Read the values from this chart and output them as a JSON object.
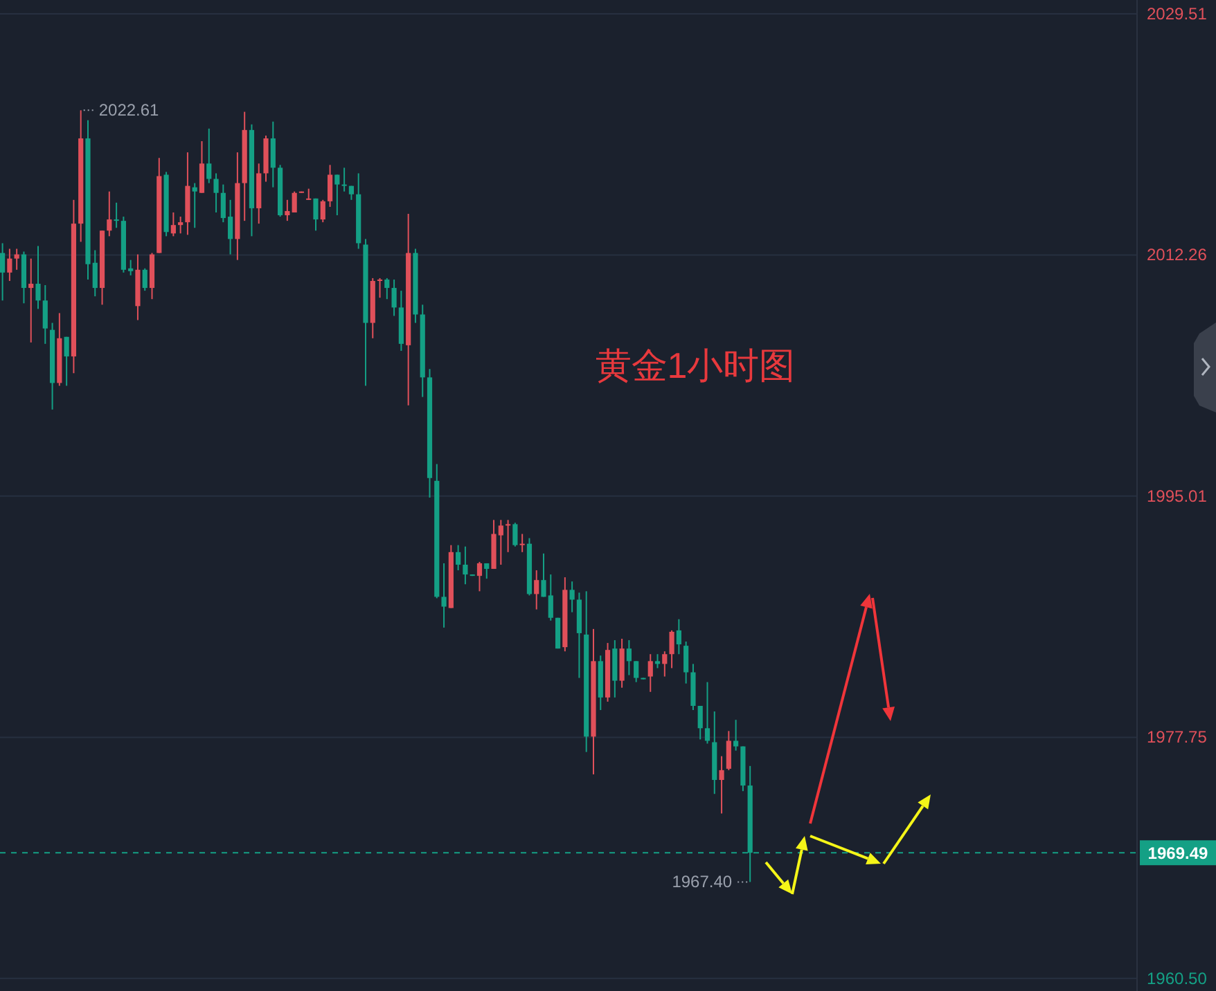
{
  "chart_data": {
    "type": "candlestick",
    "title": "黄金1小时图",
    "categories": [
      null,
      null,
      null,
      null,
      null,
      null,
      null,
      null,
      null,
      null,
      null,
      null,
      null,
      null,
      null,
      null,
      null,
      null,
      null,
      null,
      null,
      null,
      null,
      null,
      null,
      null,
      null,
      null,
      null,
      null,
      null,
      null,
      null,
      null,
      null,
      null,
      null,
      null,
      null,
      null,
      null,
      null,
      null,
      null,
      null,
      null,
      null,
      null,
      null,
      null,
      null,
      null,
      null,
      null,
      null,
      null,
      null,
      null,
      null,
      null,
      null,
      null,
      null,
      null,
      null,
      null,
      null,
      null,
      null,
      null,
      null,
      null,
      null,
      null,
      null,
      null,
      null,
      null,
      null,
      null,
      null,
      null,
      null,
      null,
      null,
      null,
      null,
      null,
      null,
      null,
      null,
      null,
      null,
      null,
      null,
      null,
      null,
      null,
      null,
      null,
      null,
      null,
      null,
      null,
      null,
      null,
      null,
      null,
      null,
      null,
      null,
      null,
      null,
      null,
      null,
      null,
      null,
      null,
      null,
      null,
      null,
      null,
      null,
      null,
      null,
      null,
      null,
      null,
      null,
      null,
      null,
      null,
      null,
      null,
      null,
      null,
      null,
      null,
      null,
      null,
      null,
      null,
      null,
      null,
      null,
      null,
      null,
      null,
      null,
      null,
      null,
      null,
      null,
      null,
      null,
      null,
      null,
      null,
      null,
      null
    ],
    "ohlc": [
      [
        2012.4,
        2013.1,
        2009.0,
        2011.0
      ],
      [
        2011.0,
        2012.7,
        2010.4,
        2012.0
      ],
      [
        2012.0,
        2012.7,
        2011.2,
        2012.3
      ],
      [
        2012.3,
        2012.5,
        2008.8,
        2009.9
      ],
      [
        2009.9,
        2012.0,
        2006.0,
        2010.2
      ],
      [
        2010.2,
        2012.9,
        2008.4,
        2009.0
      ],
      [
        2009.0,
        2010.1,
        2005.9,
        2007.0
      ],
      [
        2006.9,
        2007.4,
        2001.2,
        2003.1
      ],
      [
        2003.1,
        2008.1,
        2002.9,
        2006.3
      ],
      [
        2006.4,
        2006.4,
        2002.9,
        2005.0
      ],
      [
        2005.0,
        2016.2,
        2003.8,
        2014.5
      ],
      [
        2014.5,
        2022.61,
        2013.2,
        2020.6
      ],
      [
        2020.6,
        2021.9,
        2010.5,
        2011.6
      ],
      [
        2011.7,
        2012.6,
        2009.3,
        2009.9
      ],
      [
        2009.9,
        2014.0,
        2008.7,
        2014.0
      ],
      [
        2014.0,
        2016.8,
        2013.6,
        2014.8
      ],
      [
        2014.8,
        2016.0,
        2014.2,
        2014.7
      ],
      [
        2014.7,
        2015.0,
        2011.0,
        2011.2
      ],
      [
        2011.3,
        2011.9,
        2010.8,
        2011.1
      ],
      [
        2008.6,
        2012.3,
        2007.6,
        2011.2
      ],
      [
        2011.2,
        2011.3,
        2009.7,
        2009.9
      ],
      [
        2009.9,
        2012.4,
        2009.1,
        2012.3
      ],
      [
        2012.4,
        2019.2,
        2012.4,
        2017.9
      ],
      [
        2018.0,
        2018.2,
        2013.6,
        2013.9
      ],
      [
        2013.8,
        2015.3,
        2013.6,
        2014.4
      ],
      [
        2014.4,
        2015.0,
        2013.8,
        2014.6
      ],
      [
        2014.6,
        2019.6,
        2013.7,
        2017.2
      ],
      [
        2017.1,
        2017.4,
        2014.2,
        2016.8
      ],
      [
        2016.7,
        2020.4,
        2016.7,
        2018.8
      ],
      [
        2018.8,
        2021.3,
        2017.4,
        2017.7
      ],
      [
        2017.7,
        2018.1,
        2015.3,
        2016.7
      ],
      [
        2016.7,
        2017.3,
        2014.6,
        2014.9
      ],
      [
        2015.0,
        2016.2,
        2012.3,
        2013.4
      ],
      [
        2013.4,
        2019.6,
        2011.9,
        2017.4
      ],
      [
        2017.4,
        2022.5,
        2014.7,
        2021.2
      ],
      [
        2021.2,
        2021.6,
        2013.6,
        2015.6
      ],
      [
        2015.6,
        2018.8,
        2014.5,
        2018.1
      ],
      [
        2018.1,
        2020.8,
        2017.5,
        2020.6
      ],
      [
        2020.6,
        2021.8,
        2017.1,
        2018.5
      ],
      [
        2018.5,
        2018.7,
        2015.0,
        2015.1
      ],
      [
        2015.1,
        2016.2,
        2014.7,
        2015.4
      ],
      [
        2015.3,
        2016.8,
        2015.3,
        2016.7
      ],
      [
        2016.7,
        2016.8,
        2016.7,
        2016.8
      ],
      [
        2016.2,
        2017.0,
        2016.2,
        2016.3
      ],
      [
        2016.3,
        2016.3,
        2014.0,
        2014.8
      ],
      [
        2014.8,
        2016.2,
        2014.6,
        2016.1
      ],
      [
        2016.1,
        2018.7,
        2015.7,
        2018.0
      ],
      [
        2018.0,
        2018.0,
        2015.1,
        2017.3
      ],
      [
        2017.3,
        2018.5,
        2016.8,
        2017.2
      ],
      [
        2017.2,
        2017.2,
        2016.2,
        2016.6
      ],
      [
        2016.6,
        2018.1,
        2012.7,
        2013.1
      ],
      [
        2013.0,
        2013.4,
        2002.9,
        2007.4
      ],
      [
        2007.4,
        2010.6,
        2006.3,
        2010.4
      ],
      [
        2010.4,
        2010.6,
        2009.2,
        2010.5
      ],
      [
        2010.5,
        2010.6,
        2009.1,
        2009.9
      ],
      [
        2009.9,
        2010.5,
        2007.9,
        2008.5
      ],
      [
        2008.5,
        2009.7,
        2005.4,
        2005.9
      ],
      [
        2005.8,
        2015.2,
        2001.5,
        2012.4
      ],
      [
        2012.4,
        2012.7,
        2007.4,
        2008.0
      ],
      [
        2008.0,
        2008.7,
        2002.1,
        2003.5
      ],
      [
        2003.5,
        2004.1,
        1994.9,
        1996.3
      ],
      [
        1996.1,
        1997.3,
        1987.7,
        1987.8
      ],
      [
        1987.8,
        1990.2,
        1985.6,
        1987.1
      ],
      [
        1987.0,
        1991.5,
        1987.0,
        1991.0
      ],
      [
        1991.0,
        1991.5,
        1989.7,
        1990.1
      ],
      [
        1990.1,
        1991.4,
        1988.7,
        1989.4
      ],
      [
        1989.4,
        1989.4,
        1989.3,
        1989.3
      ],
      [
        1989.3,
        1990.3,
        1988.2,
        1990.2
      ],
      [
        1990.2,
        1990.2,
        1989.1,
        1989.8
      ],
      [
        1989.8,
        1993.3,
        1989.8,
        1992.3
      ],
      [
        1992.2,
        1993.3,
        1990.1,
        1992.9
      ],
      [
        1992.9,
        1993.3,
        1991.0,
        1993.0
      ],
      [
        1993.0,
        1993.1,
        1991.4,
        1991.5
      ],
      [
        1991.5,
        1992.3,
        1991.0,
        1991.6
      ],
      [
        1991.6,
        1992.0,
        1987.9,
        1988.0
      ],
      [
        1988.0,
        1989.7,
        1986.9,
        1989.0
      ],
      [
        1989.0,
        1990.9,
        1987.8,
        1987.8
      ],
      [
        1987.9,
        1989.4,
        1986.1,
        1986.3
      ],
      [
        1986.3,
        1986.3,
        1984.1,
        1984.1
      ],
      [
        1984.2,
        1989.2,
        1983.9,
        1988.3
      ],
      [
        1988.3,
        1988.9,
        1986.7,
        1987.6
      ],
      [
        1987.6,
        1988.1,
        1982.0,
        1985.2
      ],
      [
        1985.1,
        1988.2,
        1976.7,
        1977.8
      ],
      [
        1977.8,
        1985.5,
        1975.1,
        1983.2
      ],
      [
        1983.2,
        1983.6,
        1979.7,
        1980.6
      ],
      [
        1980.6,
        1984.5,
        1980.3,
        1984.0
      ],
      [
        1984.1,
        1984.7,
        1980.6,
        1981.8
      ],
      [
        1981.8,
        1984.8,
        1981.3,
        1984.1
      ],
      [
        1984.1,
        1984.7,
        1982.2,
        1983.2
      ],
      [
        1983.2,
        1983.2,
        1981.7,
        1982.0
      ],
      [
        1982.0,
        1982.0,
        1981.9,
        1981.9
      ],
      [
        1982.1,
        1983.7,
        1981.0,
        1983.2
      ],
      [
        1983.2,
        1983.7,
        1982.7,
        1983.0
      ],
      [
        1983.0,
        1983.9,
        1982.1,
        1983.7
      ],
      [
        1983.7,
        1985.4,
        1982.7,
        1985.3
      ],
      [
        1985.4,
        1986.2,
        1983.7,
        1984.4
      ],
      [
        1984.3,
        1984.6,
        1981.6,
        1982.4
      ],
      [
        1982.4,
        1983.0,
        1979.7,
        1980.0
      ],
      [
        1980.0,
        1980.0,
        1977.6,
        1978.4
      ],
      [
        1978.4,
        1981.7,
        1977.3,
        1977.5
      ],
      [
        1977.4,
        1979.6,
        1973.7,
        1974.7
      ],
      [
        1974.7,
        1976.4,
        1972.3,
        1975.4
      ],
      [
        1975.5,
        1978.2,
        1975.4,
        1977.5
      ],
      [
        1977.5,
        1979.0,
        1976.8,
        1977.1
      ],
      [
        1977.1,
        1977.1,
        1973.9,
        1974.3
      ],
      [
        1974.3,
        1975.7,
        1967.4,
        1969.49
      ],
      null,
      null,
      null,
      null,
      null,
      null,
      null,
      null,
      null,
      null,
      null,
      null,
      null,
      null,
      null,
      null,
      null,
      null,
      null,
      null,
      null,
      null,
      null,
      null,
      null,
      null,
      null,
      null,
      null,
      null,
      null,
      null,
      null,
      null,
      null,
      null,
      null,
      null,
      null,
      null,
      null,
      null,
      null,
      null,
      null,
      null,
      null,
      null,
      null,
      null,
      null,
      null,
      null,
      null
    ],
    "ylim": [
      1959.6,
      2030.5
    ],
    "yticks": [
      {
        "value": 1960.5,
        "label": "1960.50"
      },
      1977.75,
      1995.01,
      2012.26,
      2029.51
    ],
    "grid": "y",
    "tick_labels": "y",
    "ref_lines": [
      {
        "axis": "y",
        "value": 1969.49,
        "label": "1969.49",
        "color": "#14a085",
        "line_style": "dashed"
      }
    ],
    "annotations": [
      "2022.61",
      "1967.40"
    ]
  }
}
